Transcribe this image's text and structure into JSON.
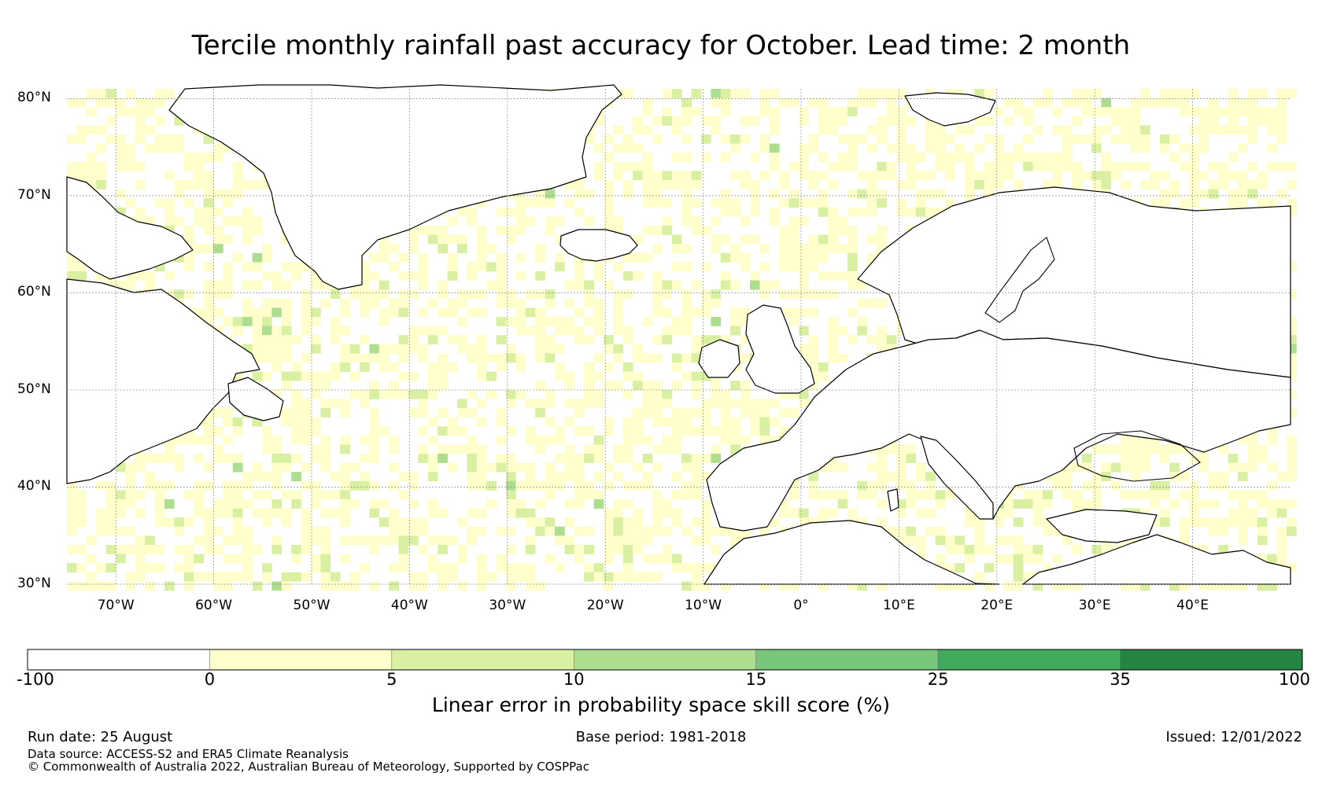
{
  "title": "Tercile monthly rainfall past accuracy for October. Lead time: 2 month",
  "map": {
    "lat_labels": [
      "80°N",
      "70°N",
      "60°N",
      "50°N",
      "40°N",
      "30°N"
    ],
    "lon_labels": [
      "70°W",
      "60°W",
      "50°W",
      "40°W",
      "30°W",
      "20°W",
      "10°W",
      "0°",
      "10°E",
      "20°E",
      "30°E",
      "40°E"
    ],
    "extent": {
      "lon_min": -75,
      "lon_max": 50,
      "lat_min": 30,
      "lat_max": 81
    },
    "grid": true
  },
  "colorbar": {
    "ticks": [
      "-100",
      "0",
      "5",
      "10",
      "15",
      "25",
      "35",
      "100"
    ],
    "colors": [
      "#ffffff",
      "#ffffcc",
      "#d9f0a3",
      "#addd8e",
      "#78c679",
      "#41ab5d",
      "#238443"
    ],
    "label": "Linear error in probability space skill score (%)"
  },
  "footer": {
    "run_date": "Run date: 25 August",
    "base_period": "Base period: 1981-2018",
    "issued": "Issued: 12/01/2022",
    "data_source": "Data source: ACCESS-S2 and ERA5 Climate Reanalysis",
    "copyright": "© Commonwealth of Australia 2022, Australian Bureau of Meteorology, Supported by COSPPac"
  }
}
